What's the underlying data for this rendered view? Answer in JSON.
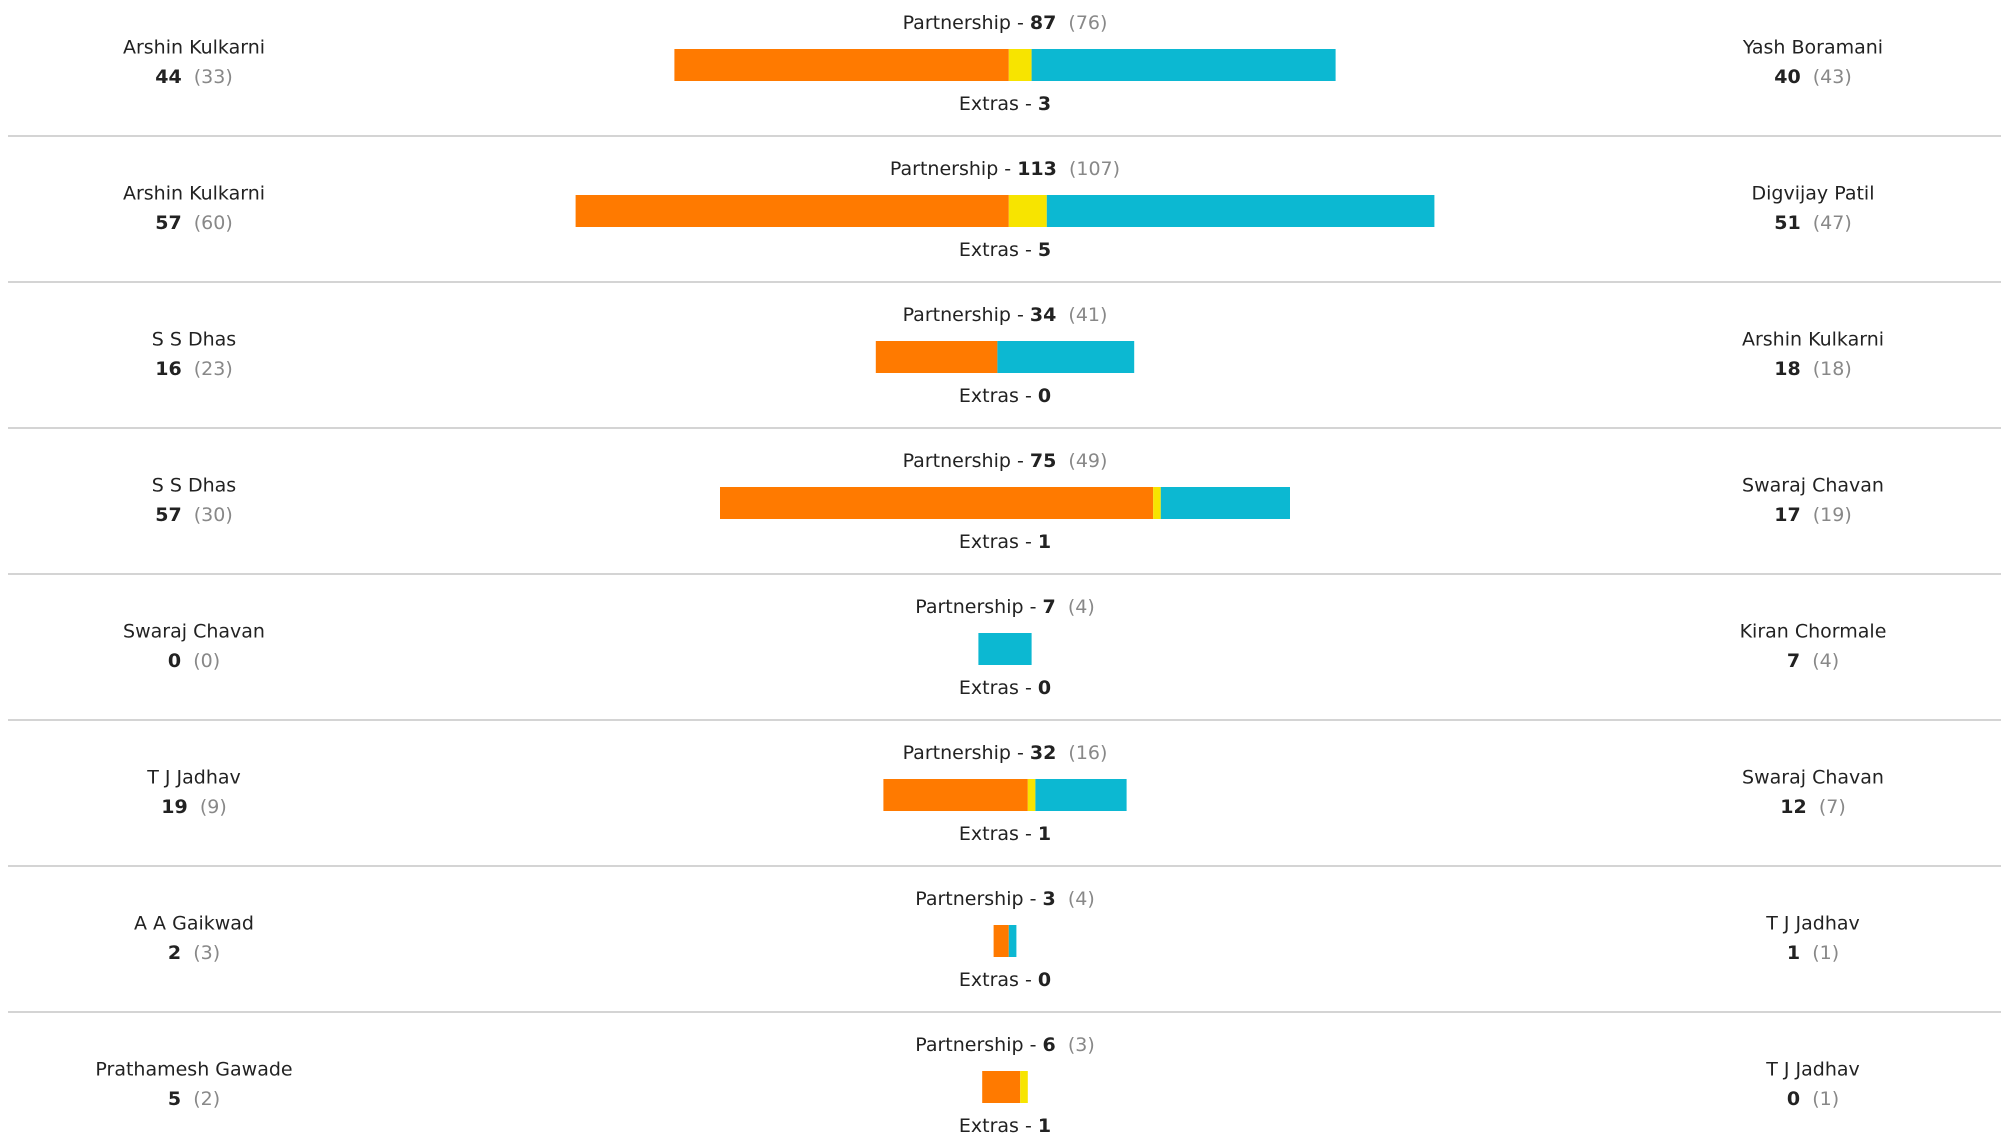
{
  "labels": {
    "partnership": "Partnership -",
    "extras": "Extras -"
  },
  "colors": {
    "left": "#ff7a00",
    "extras": "#f7e400",
    "right": "#0cb8d2"
  },
  "partnerships": [
    {
      "runs": 87,
      "balls": "(76)",
      "extras": 3,
      "left": {
        "name": "Arshin Kulkarni",
        "runs": 44,
        "balls": "(33)"
      },
      "right": {
        "name": "Yash Boramani",
        "runs": 40,
        "balls": "(43)"
      }
    },
    {
      "runs": 113,
      "balls": "(107)",
      "extras": 5,
      "left": {
        "name": "Arshin Kulkarni",
        "runs": 57,
        "balls": "(60)"
      },
      "right": {
        "name": "Digvijay Patil",
        "runs": 51,
        "balls": "(47)"
      }
    },
    {
      "runs": 34,
      "balls": "(41)",
      "extras": 0,
      "left": {
        "name": "S S Dhas",
        "runs": 16,
        "balls": "(23)"
      },
      "right": {
        "name": "Arshin Kulkarni",
        "runs": 18,
        "balls": "(18)"
      }
    },
    {
      "runs": 75,
      "balls": "(49)",
      "extras": 1,
      "left": {
        "name": "S S Dhas",
        "runs": 57,
        "balls": "(30)"
      },
      "right": {
        "name": "Swaraj Chavan",
        "runs": 17,
        "balls": "(19)"
      }
    },
    {
      "runs": 7,
      "balls": "(4)",
      "extras": 0,
      "left": {
        "name": "Swaraj Chavan",
        "runs": 0,
        "balls": "(0)"
      },
      "right": {
        "name": "Kiran Chormale",
        "runs": 7,
        "balls": "(4)"
      }
    },
    {
      "runs": 32,
      "balls": "(16)",
      "extras": 1,
      "left": {
        "name": "T J Jadhav",
        "runs": 19,
        "balls": "(9)"
      },
      "right": {
        "name": "Swaraj Chavan",
        "runs": 12,
        "balls": "(7)"
      }
    },
    {
      "runs": 3,
      "balls": "(4)",
      "extras": 0,
      "left": {
        "name": "A A Gaikwad",
        "runs": 2,
        "balls": "(3)"
      },
      "right": {
        "name": "T J Jadhav",
        "runs": 1,
        "balls": "(1)"
      }
    },
    {
      "runs": 6,
      "balls": "(3)",
      "extras": 1,
      "left": {
        "name": "Prathamesh Gawade",
        "runs": 5,
        "balls": "(2)"
      },
      "right": {
        "name": "T J Jadhav",
        "runs": 0,
        "balls": "(1)"
      }
    }
  ]
}
